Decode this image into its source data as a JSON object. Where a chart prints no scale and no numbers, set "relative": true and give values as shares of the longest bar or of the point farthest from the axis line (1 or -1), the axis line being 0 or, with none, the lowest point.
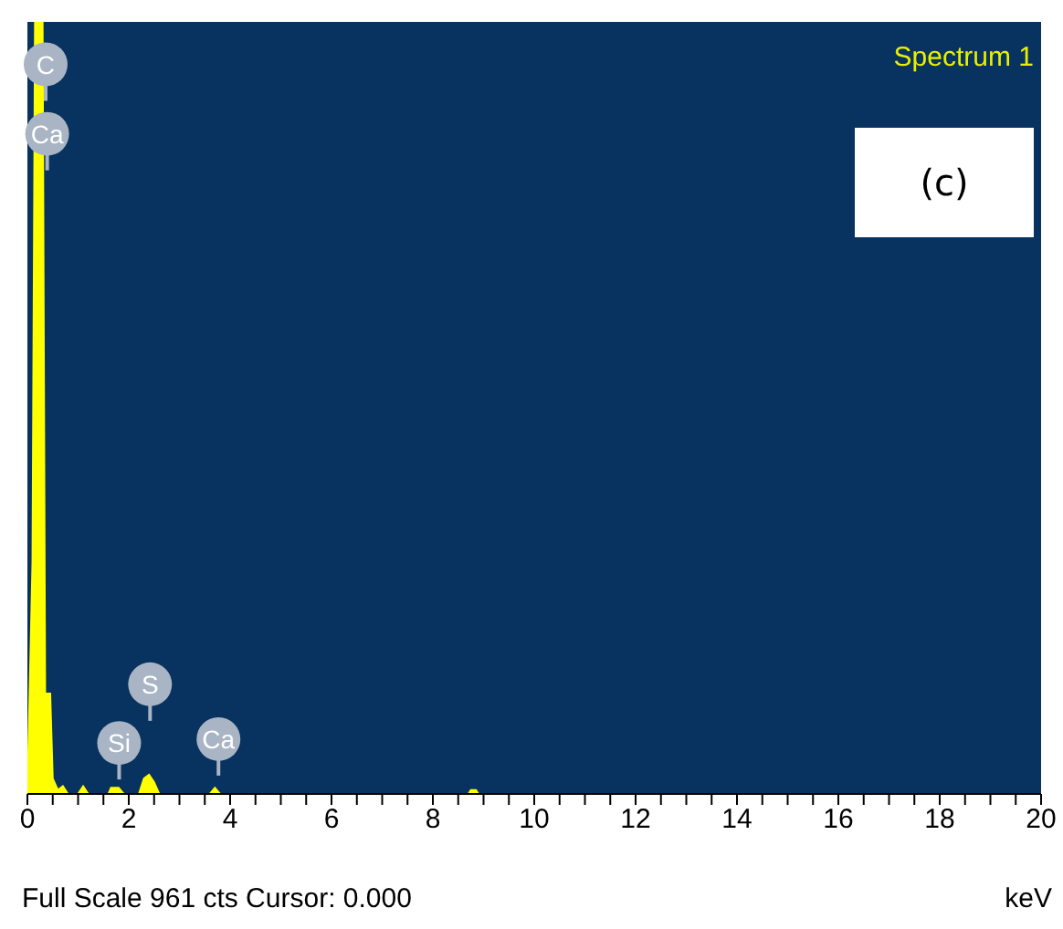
{
  "chart_data": {
    "type": "area",
    "title": "Spectrum 1",
    "xlabel": "keV",
    "relative": true,
    "x": [
      0,
      0.1,
      0.15,
      0.3,
      0.35,
      0.45,
      0.5,
      0.6,
      0.7,
      0.8,
      1.0,
      1.1,
      1.2,
      1.6,
      1.65,
      1.8,
      1.9,
      2.2,
      2.3,
      2.4,
      2.5,
      2.6,
      3.6,
      3.7,
      3.8,
      8.7,
      8.75,
      8.85,
      8.9,
      20
    ],
    "series": [
      {
        "color": "#ffff00",
        "values": [
          0,
          0.3,
          1,
          1,
          0.13,
          0.13,
          0.02,
          0.005,
          0.01,
          0,
          0,
          0.01,
          0,
          0,
          0.008,
          0.008,
          0,
          0,
          0.02,
          0.025,
          0.015,
          0,
          0,
          0.008,
          0,
          0,
          0.005,
          0.005,
          0,
          0
        ]
      }
    ],
    "xlim": [
      0,
      20
    ],
    "xticks": [
      0,
      {
        "value": 0.5,
        "label": null
      },
      {
        "value": 1,
        "label": null
      },
      {
        "value": 1.5,
        "label": null
      },
      2,
      {
        "value": 2.5,
        "label": null
      },
      {
        "value": 3,
        "label": null
      },
      {
        "value": 3.5,
        "label": null
      },
      4,
      {
        "value": 4.5,
        "label": null
      },
      {
        "value": 5,
        "label": null
      },
      {
        "value": 5.5,
        "label": null
      },
      6,
      {
        "value": 6.5,
        "label": null
      },
      {
        "value": 7,
        "label": null
      },
      {
        "value": 7.5,
        "label": null
      },
      8,
      {
        "value": 8.5,
        "label": null
      },
      {
        "value": 9,
        "label": null
      },
      {
        "value": 9.5,
        "label": null
      },
      10,
      {
        "value": 10.5,
        "label": null
      },
      {
        "value": 11,
        "label": null
      },
      {
        "value": 11.5,
        "label": null
      },
      12,
      {
        "value": 12.5,
        "label": null
      },
      {
        "value": 13,
        "label": null
      },
      {
        "value": 13.5,
        "label": null
      },
      14,
      {
        "value": 14.5,
        "label": null
      },
      {
        "value": 15,
        "label": null
      },
      {
        "value": 15.5,
        "label": null
      },
      16,
      {
        "value": 16.5,
        "label": null
      },
      {
        "value": 17,
        "label": null
      },
      {
        "value": 17.5,
        "label": null
      },
      18,
      {
        "value": 18.5,
        "label": null
      },
      {
        "value": 19,
        "label": null
      },
      {
        "value": 19.5,
        "label": null
      },
      20
    ],
    "annotations": [
      {
        "text": "C",
        "x": 0.36,
        "y": 0.945
      },
      {
        "text": "Ca",
        "x": 0.39,
        "y": 0.855
      },
      {
        "text": "Si",
        "x": 1.81,
        "y": 0.066
      },
      {
        "text": "S",
        "x": 2.42,
        "y": 0.142
      },
      {
        "text": "Ca",
        "x": 3.77,
        "y": 0.071
      },
      "(c)",
      "Full Scale 961 cts Cursor: 0.000"
    ]
  }
}
